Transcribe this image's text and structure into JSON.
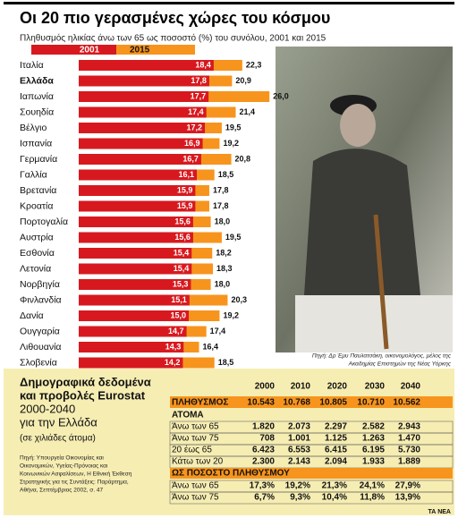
{
  "chart_data": {
    "type": "bar",
    "orientation": "horizontal",
    "title": "Οι 20 πιο γερασμένες χώρες του κόσμου",
    "subtitle": "Πληθυσμός ηλικίας άνω των 65 ως ποσοστό (%) του συνόλου, 2001 και 2015",
    "categories": [
      "Ιταλία",
      "Ελλάδα",
      "Ιαπωνία",
      "Σουηδία",
      "Βέλγιο",
      "Ισπανία",
      "Γερμανία",
      "Γαλλία",
      "Βρετανία",
      "Κροατία",
      "Πορτογαλία",
      "Αυστρία",
      "Εσθονία",
      "Λετονία",
      "Νορβηγία",
      "Φινλανδία",
      "Δανία",
      "Ουγγαρία",
      "Λιθουανία",
      "Σλοβενία"
    ],
    "series": [
      {
        "name": "2001",
        "color": "#d7191f",
        "values": [
          18.4,
          17.8,
          17.7,
          17.4,
          17.2,
          16.9,
          16.7,
          16.1,
          15.9,
          15.9,
          15.6,
          15.6,
          15.4,
          15.4,
          15.3,
          15.1,
          15.0,
          14.7,
          14.3,
          14.2
        ],
        "value_labels": [
          "18,4",
          "17,8",
          "17,7",
          "17,4",
          "17,2",
          "16,9",
          "16,7",
          "16,1",
          "15,9",
          "15,9",
          "15,6",
          "15,6",
          "15,4",
          "15,4",
          "15,3",
          "15,1",
          "15,0",
          "14,7",
          "14,3",
          "14,2"
        ]
      },
      {
        "name": "2015",
        "color": "#f7941d",
        "values": [
          22.3,
          20.9,
          26.0,
          21.4,
          19.5,
          19.2,
          20.8,
          18.5,
          17.8,
          17.8,
          18.0,
          19.5,
          18.2,
          18.3,
          18.0,
          20.3,
          19.2,
          17.4,
          16.4,
          18.5
        ],
        "value_labels": [
          "22,3",
          "20,9",
          "26,0",
          "21,4",
          "19,5",
          "19,2",
          "20,8",
          "18,5",
          "17,8",
          "17,8",
          "18,0",
          "19,5",
          "18,2",
          "18,3",
          "18,0",
          "20,3",
          "19,2",
          "17,4",
          "16,4",
          "18,5"
        ]
      }
    ]
  },
  "photo": {
    "credit": [
      "Πηγή: Δρ Έμυ Παυλατσάκη, οικονομολόγος, μέλος της",
      "Ακαδημίας Επιστημών της Νέας Υόρκης"
    ]
  },
  "table": {
    "title": [
      "Δημογραφικά δεδομένα",
      "και προβολές Eurostat",
      "2000-2040",
      "για την Ελλάδα"
    ],
    "unit": "(σε χιλιάδες άτομα)",
    "source": [
      "Πηγή: Υπουργεία Οικονομίας και",
      "Οικονομικών, Υγείας-Πρόνοιας και",
      "Κοινωνικών Ασφαλίσεων, Η Εθνική Έκθεση",
      "Στρατηγικής για τις Συντάξεις: Παράρτημα,",
      "Αθήνα, Σεπτέμβριος 2002, σ. 47"
    ],
    "columns": [
      "2000",
      "2010",
      "2020",
      "2030",
      "2040"
    ],
    "population": [
      "ΠΛΗΘΥΣΜΟΣ",
      "10.543",
      "10.768",
      "10.805",
      "10.710",
      "10.562"
    ],
    "section1": "ΑΤΟΜΑ",
    "rows1": [
      [
        "Άνω των 65",
        "1.820",
        "2.073",
        "2.297",
        "2.582",
        "2.943"
      ],
      [
        "Άνω των 75",
        "708",
        "1.001",
        "1.125",
        "1.263",
        "1.470"
      ],
      [
        "20 έως 65",
        "6.423",
        "6.553",
        "6.415",
        "6.195",
        "5.730"
      ],
      [
        "Κάτω των 20",
        "2.300",
        "2.143",
        "2.094",
        "1.933",
        "1.889"
      ]
    ],
    "section2": "ΩΣ ΠΟΣΟΣΤΟ ΠΛΗΘΥΣΜΟΥ",
    "rows2": [
      [
        "Άνω των 65",
        "17,3%",
        "19,2%",
        "21,3%",
        "24,1%",
        "27,9%"
      ],
      [
        "Άνω των 75",
        "6,7%",
        "9,3%",
        "10,4%",
        "11,8%",
        "13,9%"
      ]
    ]
  },
  "footer": "ΤΑ ΝΕΑ"
}
